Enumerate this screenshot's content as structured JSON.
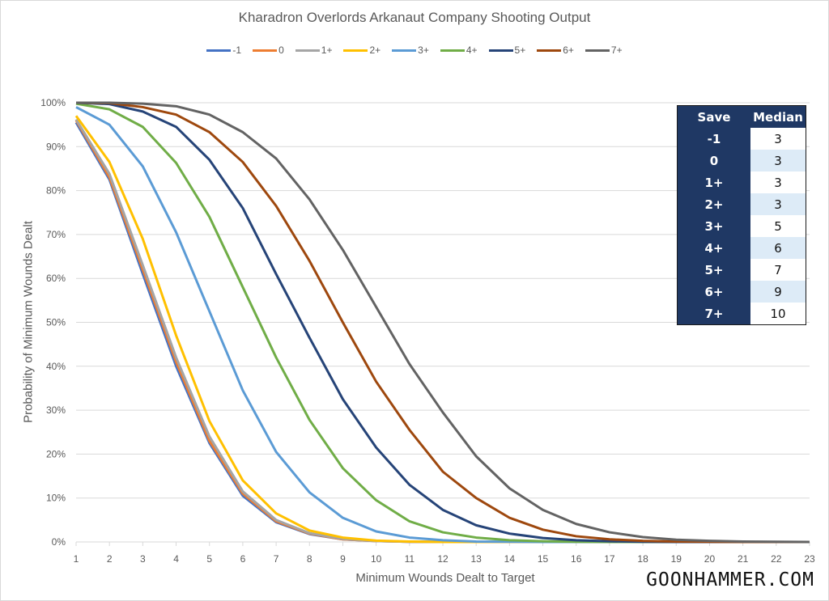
{
  "chart_data": {
    "type": "line",
    "title": "Kharadron Overlords Arkanaut Company Shooting Output",
    "xlabel": "Minimum Wounds Dealt to Target",
    "ylabel": "Probability of Minimum Wounds Dealt",
    "x": [
      1,
      2,
      3,
      4,
      5,
      6,
      7,
      8,
      9,
      10,
      11,
      12,
      13,
      14,
      15,
      16,
      17,
      18,
      19,
      20,
      21,
      22,
      23
    ],
    "xlim": [
      1,
      23
    ],
    "ylim": [
      0,
      100
    ],
    "y_ticks": [
      "0%",
      "10%",
      "20%",
      "30%",
      "40%",
      "50%",
      "60%",
      "70%",
      "80%",
      "90%",
      "100%"
    ],
    "x_ticks": [
      "1",
      "2",
      "3",
      "4",
      "5",
      "6",
      "7",
      "8",
      "9",
      "10",
      "11",
      "12",
      "13",
      "14",
      "15",
      "16",
      "17",
      "18",
      "19",
      "20",
      "21",
      "22",
      "23"
    ],
    "grid": true,
    "legend_position": "top",
    "series": [
      {
        "name": "-1",
        "color": "#4472c4",
        "values": [
          95.5,
          82.5,
          61,
          40,
          22.5,
          10.5,
          4.5,
          1.8,
          0.6,
          0.2,
          0.05,
          0,
          0,
          0,
          0,
          0,
          0,
          0,
          0,
          0,
          0,
          0,
          0
        ]
      },
      {
        "name": "0",
        "color": "#ed7d31",
        "values": [
          96,
          83,
          62,
          41,
          23,
          11,
          4.7,
          1.9,
          0.6,
          0.2,
          0.05,
          0,
          0,
          0,
          0,
          0,
          0,
          0,
          0,
          0,
          0,
          0,
          0
        ]
      },
      {
        "name": "1+",
        "color": "#a5a5a5",
        "values": [
          96.2,
          83.8,
          63,
          42,
          24,
          11.5,
          5,
          2,
          0.7,
          0.2,
          0.05,
          0,
          0,
          0,
          0,
          0,
          0,
          0,
          0,
          0,
          0,
          0,
          0
        ]
      },
      {
        "name": "2+",
        "color": "#ffc000",
        "values": [
          97,
          86.5,
          69,
          47,
          27.5,
          14,
          6.5,
          2.6,
          1,
          0.3,
          0.1,
          0,
          0,
          0,
          0,
          0,
          0,
          0,
          0,
          0,
          0,
          0,
          0
        ]
      },
      {
        "name": "3+",
        "color": "#5b9bd5",
        "values": [
          99,
          95,
          85.5,
          70.5,
          52.5,
          34.5,
          20.5,
          11.3,
          5.5,
          2.4,
          1,
          0.4,
          0.1,
          0.05,
          0,
          0,
          0,
          0,
          0,
          0,
          0,
          0,
          0
        ]
      },
      {
        "name": "4+",
        "color": "#70ad47",
        "values": [
          99.8,
          98.5,
          94.5,
          86.3,
          74,
          58,
          42,
          27.8,
          16.8,
          9.5,
          4.7,
          2.2,
          1,
          0.4,
          0.15,
          0.05,
          0,
          0,
          0,
          0,
          0,
          0,
          0
        ]
      },
      {
        "name": "5+",
        "color": "#264478",
        "values": [
          100,
          99.7,
          98,
          94.5,
          87,
          76,
          61,
          46.5,
          32.5,
          21.5,
          13,
          7.3,
          3.8,
          1.9,
          0.9,
          0.4,
          0.15,
          0.05,
          0,
          0,
          0,
          0,
          0
        ]
      },
      {
        "name": "6+",
        "color": "#9e480e",
        "values": [
          100,
          99.9,
          99,
          97.3,
          93.3,
          86.5,
          76.5,
          64,
          50,
          36.5,
          25.5,
          16,
          10,
          5.5,
          2.8,
          1.3,
          0.6,
          0.25,
          0.1,
          0.04,
          0,
          0,
          0
        ]
      },
      {
        "name": "7+",
        "color": "#636363",
        "values": [
          100,
          100,
          99.8,
          99.2,
          97.3,
          93.3,
          87.3,
          78,
          66.5,
          53.5,
          40.5,
          29.5,
          19.5,
          12.2,
          7.3,
          4.1,
          2.2,
          1.1,
          0.5,
          0.25,
          0.1,
          0.04,
          0
        ]
      }
    ]
  },
  "median_table": {
    "headers": [
      "Save",
      "Median"
    ],
    "rows": [
      {
        "save": "-1",
        "median": "3"
      },
      {
        "save": "0",
        "median": "3"
      },
      {
        "save": "1+",
        "median": "3"
      },
      {
        "save": "2+",
        "median": "3"
      },
      {
        "save": "3+",
        "median": "5"
      },
      {
        "save": "4+",
        "median": "6"
      },
      {
        "save": "5+",
        "median": "7"
      },
      {
        "save": "6+",
        "median": "9"
      },
      {
        "save": "7+",
        "median": "10"
      }
    ]
  },
  "brand": "GOONHAMMER.COM"
}
